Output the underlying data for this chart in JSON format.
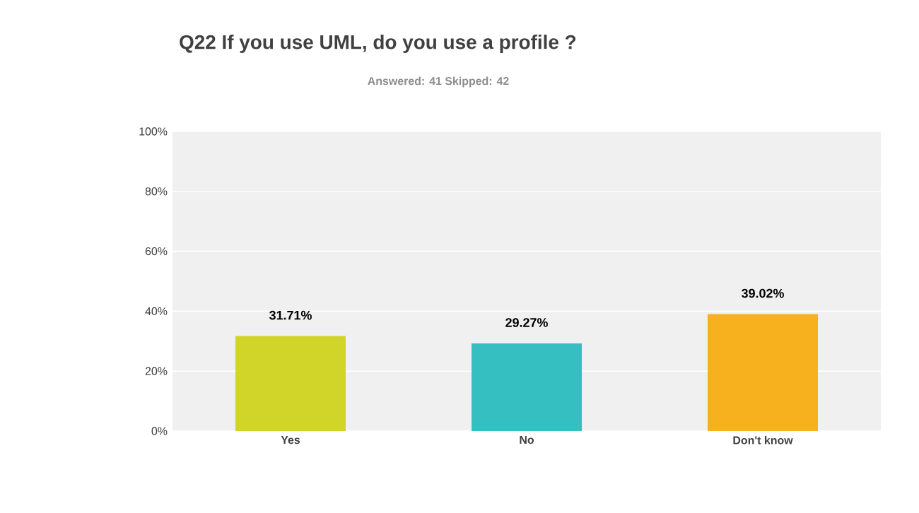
{
  "chart_data": {
    "type": "bar",
    "title": "Q22 If you use UML, do you use a profile ?",
    "subtitle": "Answered: 41  Skipped: 42",
    "categories": [
      "Yes",
      "No",
      "Don't know"
    ],
    "values": [
      31.71,
      29.27,
      39.02
    ],
    "colors": [
      "#d1d52a",
      "#35bfc0",
      "#f7b11f"
    ],
    "value_labels": [
      "31.71%",
      "29.27%",
      "39.02%"
    ],
    "ylim": [
      0,
      100
    ],
    "yticks": [
      {
        "value": 0,
        "label": "0%"
      },
      {
        "value": 20,
        "label": "20%"
      },
      {
        "value": 40,
        "label": "40%"
      },
      {
        "value": 60,
        "label": "60%"
      },
      {
        "value": 80,
        "label": "80%"
      },
      {
        "value": 100,
        "label": "100%"
      }
    ],
    "grid": "y"
  }
}
